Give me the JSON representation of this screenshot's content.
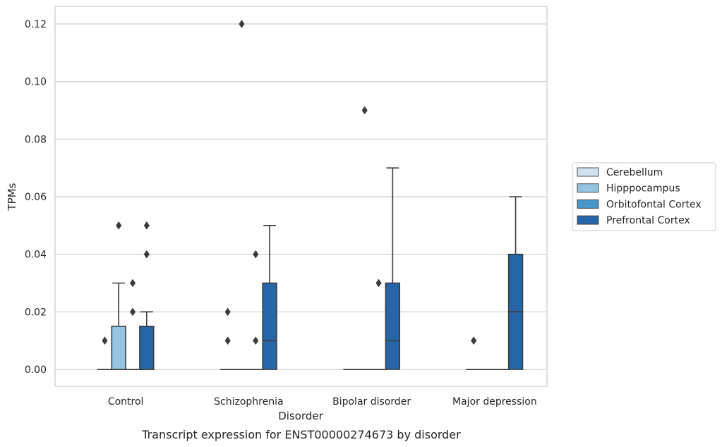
{
  "chart_data": {
    "type": "box",
    "caption": "Transcript expression for ENST00000274673 by disorder",
    "xlabel": "Disorder",
    "ylabel": "TPMs",
    "ylim": [
      -0.006,
      0.126
    ],
    "yticks": [
      0.0,
      0.02,
      0.04,
      0.06,
      0.08,
      0.1,
      0.12
    ],
    "ytick_labels": [
      "0.00",
      "0.02",
      "0.04",
      "0.06",
      "0.08",
      "0.10",
      "0.12"
    ],
    "grid": true,
    "legend_position": "right",
    "categories": [
      "Control",
      "Schizophrenia",
      "Bipolar disorder",
      "Major depression"
    ],
    "series": [
      {
        "name": "Cerebellum",
        "color": "#d0e1f2",
        "boxes": [
          {
            "q1": 0,
            "median": 0,
            "q3": 0,
            "whisker_low": 0,
            "whisker_high": 0,
            "outliers": [
              0.01
            ]
          },
          {
            "q1": 0,
            "median": 0,
            "q3": 0,
            "whisker_low": 0,
            "whisker_high": 0,
            "outliers": [
              0.01,
              0.02
            ]
          },
          {
            "q1": 0,
            "median": 0,
            "q3": 0,
            "whisker_low": 0,
            "whisker_high": 0,
            "outliers": []
          },
          {
            "q1": 0,
            "median": 0,
            "q3": 0,
            "whisker_low": 0,
            "whisker_high": 0,
            "outliers": [
              0.01
            ]
          }
        ]
      },
      {
        "name": "Hipppocampus",
        "color": "#94c4df",
        "boxes": [
          {
            "q1": 0,
            "median": 0,
            "q3": 0.015,
            "whisker_low": 0,
            "whisker_high": 0.03,
            "outliers": [
              0.05
            ]
          },
          {
            "q1": 0,
            "median": 0,
            "q3": 0,
            "whisker_low": 0,
            "whisker_high": 0,
            "outliers": [
              0.12
            ]
          },
          {
            "q1": 0,
            "median": 0,
            "q3": 0,
            "whisker_low": 0,
            "whisker_high": 0,
            "outliers": [
              0.09
            ]
          },
          {
            "q1": 0,
            "median": 0,
            "q3": 0,
            "whisker_low": 0,
            "whisker_high": 0,
            "outliers": []
          }
        ]
      },
      {
        "name": "Orbitofontal Cortex",
        "color": "#4a98c9",
        "boxes": [
          {
            "q1": 0,
            "median": 0,
            "q3": 0,
            "whisker_low": 0,
            "whisker_high": 0,
            "outliers": [
              0.02,
              0.03
            ]
          },
          {
            "q1": 0,
            "median": 0,
            "q3": 0,
            "whisker_low": 0,
            "whisker_high": 0,
            "outliers": [
              0.01,
              0.04
            ]
          },
          {
            "q1": 0,
            "median": 0,
            "q3": 0,
            "whisker_low": 0,
            "whisker_high": 0,
            "outliers": [
              0.03
            ]
          },
          {
            "q1": 0,
            "median": 0,
            "q3": 0,
            "whisker_low": 0,
            "whisker_high": 0,
            "outliers": []
          }
        ]
      },
      {
        "name": "Prefrontal Cortex",
        "color": "#2666a8",
        "boxes": [
          {
            "q1": 0,
            "median": 0,
            "q3": 0.015,
            "whisker_low": 0,
            "whisker_high": 0.02,
            "outliers": [
              0.04,
              0.05
            ]
          },
          {
            "q1": 0,
            "median": 0.01,
            "q3": 0.03,
            "whisker_low": 0,
            "whisker_high": 0.05,
            "outliers": []
          },
          {
            "q1": 0,
            "median": 0.01,
            "q3": 0.03,
            "whisker_low": 0,
            "whisker_high": 0.07,
            "outliers": []
          },
          {
            "q1": 0,
            "median": 0.02,
            "q3": 0.04,
            "whisker_low": 0,
            "whisker_high": 0.06,
            "outliers": []
          }
        ]
      }
    ]
  }
}
